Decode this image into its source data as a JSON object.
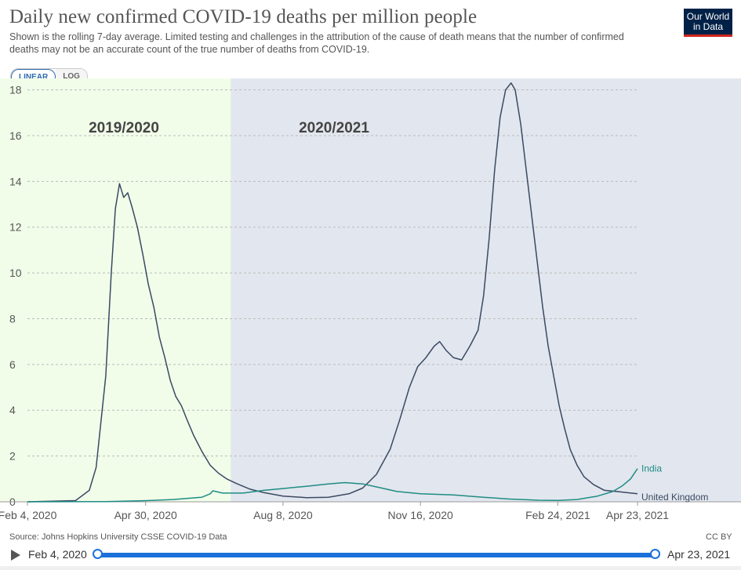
{
  "header": {
    "title": "Daily new confirmed COVID-19 deaths per million people",
    "subtitle": "Shown is the rolling 7-day average. Limited testing and challenges in the attribution of the cause of death means that the number of confirmed deaths may not be an accurate count of the true number of deaths from COVID-19.",
    "logo_line1": "Our World",
    "logo_line2": "in Data"
  },
  "scale_toggle": {
    "linear": "LINEAR",
    "log": "LOG",
    "selected": "LINEAR"
  },
  "footer": {
    "source": "Source: Johns Hopkins University CSSE COVID-19 Data",
    "license": "CC BY"
  },
  "timeline": {
    "start_label": "Feb 4, 2020",
    "end_label": "Apr 23, 2021"
  },
  "colors": {
    "season1_bg": "#f1fde9",
    "season2_bg": "#e2e6ee",
    "united_kingdom": "#3a4a63",
    "india": "#1f8c85",
    "accent": "#1a71d9"
  },
  "chart_data": {
    "type": "line",
    "title": "Daily new confirmed COVID-19 deaths per million people",
    "xlabel": "",
    "ylabel": "",
    "x_range": [
      "2020-02-04",
      "2021-04-23"
    ],
    "ylim": [
      0,
      18.5
    ],
    "y_ticks": [
      0,
      2,
      4,
      6,
      8,
      10,
      12,
      14,
      16,
      18
    ],
    "x_ticks": [
      {
        "date": "2020-02-04",
        "label": "Feb 4, 2020"
      },
      {
        "date": "2020-04-30",
        "label": "Apr 30, 2020"
      },
      {
        "date": "2020-08-08",
        "label": "Aug 8, 2020"
      },
      {
        "date": "2020-11-16",
        "label": "Nov 16, 2020"
      },
      {
        "date": "2021-02-24",
        "label": "Feb 24, 2021"
      },
      {
        "date": "2021-04-23",
        "label": "Apr 23, 2021"
      }
    ],
    "grid": true,
    "legend": "end-of-line labels",
    "annotations": [
      {
        "text": "2019/2020",
        "from": "2020-02-04",
        "to": "2020-07-01"
      },
      {
        "text": "2020/2021",
        "from": "2020-07-01",
        "to": "2021-04-23"
      }
    ],
    "series": [
      {
        "name": "United Kingdom",
        "points": [
          [
            "2020-02-04",
            0
          ],
          [
            "2020-03-10",
            0.05
          ],
          [
            "2020-03-20",
            0.5
          ],
          [
            "2020-03-25",
            1.5
          ],
          [
            "2020-04-01",
            5.5
          ],
          [
            "2020-04-05",
            10
          ],
          [
            "2020-04-08",
            12.8
          ],
          [
            "2020-04-11",
            13.9
          ],
          [
            "2020-04-14",
            13.3
          ],
          [
            "2020-04-17",
            13.5
          ],
          [
            "2020-04-20",
            12.9
          ],
          [
            "2020-04-24",
            12
          ],
          [
            "2020-04-28",
            10.8
          ],
          [
            "2020-05-02",
            9.5
          ],
          [
            "2020-05-06",
            8.5
          ],
          [
            "2020-05-10",
            7.2
          ],
          [
            "2020-05-14",
            6.3
          ],
          [
            "2020-05-18",
            5.3
          ],
          [
            "2020-05-22",
            4.6
          ],
          [
            "2020-05-26",
            4.2
          ],
          [
            "2020-05-30",
            3.6
          ],
          [
            "2020-06-04",
            2.9
          ],
          [
            "2020-06-10",
            2.2
          ],
          [
            "2020-06-16",
            1.6
          ],
          [
            "2020-06-22",
            1.25
          ],
          [
            "2020-06-28",
            1.0
          ],
          [
            "2020-07-05",
            0.8
          ],
          [
            "2020-07-15",
            0.55
          ],
          [
            "2020-07-25",
            0.4
          ],
          [
            "2020-08-08",
            0.25
          ],
          [
            "2020-08-25",
            0.18
          ],
          [
            "2020-09-10",
            0.2
          ],
          [
            "2020-09-25",
            0.35
          ],
          [
            "2020-10-05",
            0.6
          ],
          [
            "2020-10-15",
            1.2
          ],
          [
            "2020-10-25",
            2.3
          ],
          [
            "2020-11-01",
            3.6
          ],
          [
            "2020-11-08",
            5.0
          ],
          [
            "2020-11-14",
            5.9
          ],
          [
            "2020-11-20",
            6.3
          ],
          [
            "2020-11-26",
            6.8
          ],
          [
            "2020-11-30",
            7.0
          ],
          [
            "2020-12-05",
            6.6
          ],
          [
            "2020-12-10",
            6.3
          ],
          [
            "2020-12-16",
            6.2
          ],
          [
            "2020-12-22",
            6.8
          ],
          [
            "2020-12-28",
            7.5
          ],
          [
            "2021-01-01",
            9.0
          ],
          [
            "2021-01-05",
            11.5
          ],
          [
            "2021-01-09",
            14.5
          ],
          [
            "2021-01-13",
            16.8
          ],
          [
            "2021-01-17",
            18.0
          ],
          [
            "2021-01-21",
            18.3
          ],
          [
            "2021-01-24",
            18.0
          ],
          [
            "2021-01-28",
            16.5
          ],
          [
            "2021-02-01",
            14.5
          ],
          [
            "2021-02-05",
            12.5
          ],
          [
            "2021-02-09",
            10.5
          ],
          [
            "2021-02-13",
            8.5
          ],
          [
            "2021-02-17",
            6.8
          ],
          [
            "2021-02-21",
            5.5
          ],
          [
            "2021-02-25",
            4.2
          ],
          [
            "2021-03-01",
            3.2
          ],
          [
            "2021-03-05",
            2.3
          ],
          [
            "2021-03-10",
            1.6
          ],
          [
            "2021-03-15",
            1.1
          ],
          [
            "2021-03-22",
            0.75
          ],
          [
            "2021-03-30",
            0.5
          ],
          [
            "2021-04-08",
            0.45
          ],
          [
            "2021-04-15",
            0.4
          ],
          [
            "2021-04-23",
            0.35
          ]
        ]
      },
      {
        "name": "India",
        "points": [
          [
            "2020-02-04",
            0
          ],
          [
            "2020-04-01",
            0.01
          ],
          [
            "2020-05-01",
            0.05
          ],
          [
            "2020-05-20",
            0.1
          ],
          [
            "2020-06-10",
            0.2
          ],
          [
            "2020-06-16",
            0.35
          ],
          [
            "2020-06-18",
            0.48
          ],
          [
            "2020-06-25",
            0.38
          ],
          [
            "2020-07-10",
            0.38
          ],
          [
            "2020-07-25",
            0.5
          ],
          [
            "2020-08-08",
            0.58
          ],
          [
            "2020-08-25",
            0.68
          ],
          [
            "2020-09-10",
            0.78
          ],
          [
            "2020-09-22",
            0.84
          ],
          [
            "2020-10-05",
            0.78
          ],
          [
            "2020-10-15",
            0.65
          ],
          [
            "2020-10-30",
            0.45
          ],
          [
            "2020-11-16",
            0.35
          ],
          [
            "2020-12-10",
            0.3
          ],
          [
            "2021-01-01",
            0.2
          ],
          [
            "2021-01-20",
            0.12
          ],
          [
            "2021-02-10",
            0.07
          ],
          [
            "2021-02-24",
            0.06
          ],
          [
            "2021-03-10",
            0.1
          ],
          [
            "2021-03-25",
            0.25
          ],
          [
            "2021-04-05",
            0.45
          ],
          [
            "2021-04-12",
            0.7
          ],
          [
            "2021-04-18",
            1.0
          ],
          [
            "2021-04-23",
            1.45
          ]
        ]
      }
    ]
  }
}
